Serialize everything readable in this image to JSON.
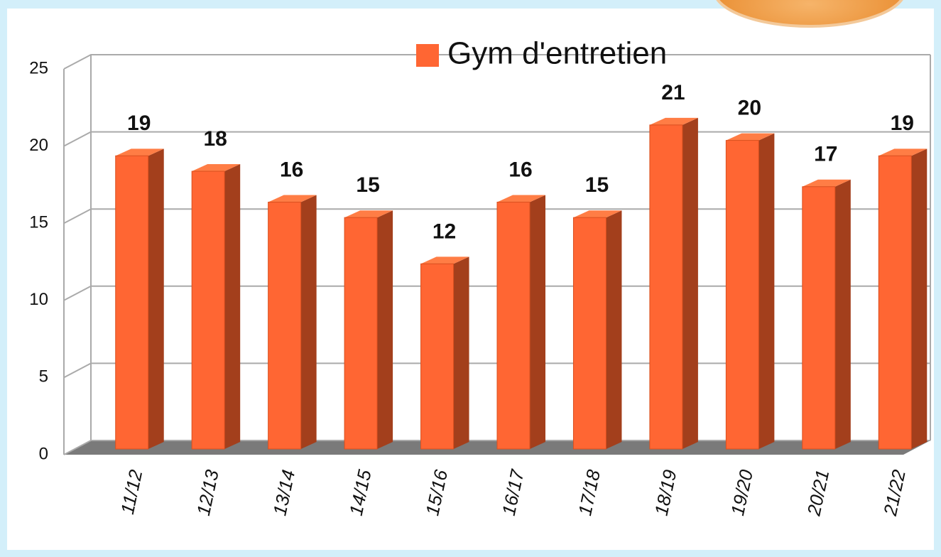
{
  "chart_data": {
    "type": "bar",
    "categories": [
      "11/12",
      "12/13",
      "13/14",
      "14/15",
      "15/16",
      "16/17",
      "17/18",
      "18/19",
      "19/20",
      "20/21",
      "21/22"
    ],
    "series": [
      {
        "name": "Gym d'entretien",
        "color": "#ff6633",
        "values": [
          19,
          18,
          16,
          15,
          12,
          16,
          15,
          21,
          20,
          17,
          19
        ]
      }
    ],
    "ylim": [
      0,
      25
    ],
    "yticks": [
      0,
      5,
      10,
      15,
      20,
      25
    ],
    "grid": true
  }
}
